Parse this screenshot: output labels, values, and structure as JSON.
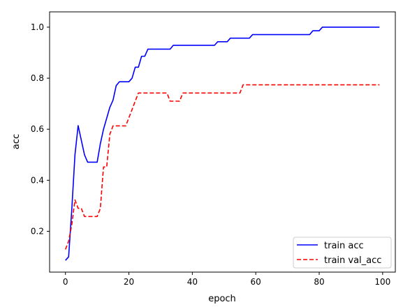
{
  "chart_data": {
    "type": "line",
    "title": "",
    "xlabel": "epoch",
    "ylabel": "acc",
    "xlim": [
      -5,
      104
    ],
    "ylim": [
      0.04,
      1.06
    ],
    "xticks": [
      0,
      20,
      40,
      60,
      80,
      100
    ],
    "yticks": [
      0.2,
      0.4,
      0.6,
      0.8,
      1.0
    ],
    "xtick_labels": [
      "0",
      "20",
      "40",
      "60",
      "80",
      "100"
    ],
    "ytick_labels": [
      "0.2",
      "0.4",
      "0.6",
      "0.8",
      "1.0"
    ],
    "grid": false,
    "legend_position": "lower-right",
    "series": [
      {
        "name": "train acc",
        "color": "#0000ff",
        "style": "solid",
        "x": [
          0,
          1,
          2,
          3,
          4,
          5,
          6,
          7,
          8,
          9,
          10,
          11,
          12,
          13,
          14,
          15,
          16,
          17,
          18,
          19,
          20,
          21,
          22,
          23,
          24,
          25,
          26,
          27,
          28,
          29,
          30,
          31,
          32,
          33,
          34,
          35,
          36,
          37,
          38,
          39,
          40,
          41,
          42,
          43,
          44,
          45,
          46,
          47,
          48,
          49,
          50,
          51,
          52,
          53,
          54,
          55,
          56,
          57,
          58,
          59,
          60,
          61,
          62,
          63,
          64,
          65,
          66,
          67,
          68,
          69,
          70,
          71,
          72,
          73,
          74,
          75,
          76,
          77,
          78,
          79,
          80,
          81,
          82,
          83,
          84,
          85,
          86,
          87,
          88,
          89,
          90,
          91,
          92,
          93,
          94,
          95,
          96,
          97,
          98,
          99
        ],
        "values": [
          0.086,
          0.1,
          0.286,
          0.5,
          0.614,
          0.557,
          0.5,
          0.471,
          0.471,
          0.471,
          0.471,
          0.543,
          0.6,
          0.643,
          0.686,
          0.714,
          0.771,
          0.786,
          0.786,
          0.786,
          0.786,
          0.8,
          0.843,
          0.843,
          0.886,
          0.886,
          0.914,
          0.914,
          0.914,
          0.914,
          0.914,
          0.914,
          0.914,
          0.914,
          0.929,
          0.929,
          0.929,
          0.929,
          0.929,
          0.929,
          0.929,
          0.929,
          0.929,
          0.929,
          0.929,
          0.929,
          0.929,
          0.929,
          0.943,
          0.943,
          0.943,
          0.943,
          0.957,
          0.957,
          0.957,
          0.957,
          0.957,
          0.957,
          0.957,
          0.971,
          0.971,
          0.971,
          0.971,
          0.971,
          0.971,
          0.971,
          0.971,
          0.971,
          0.971,
          0.971,
          0.971,
          0.971,
          0.971,
          0.971,
          0.971,
          0.971,
          0.971,
          0.971,
          0.986,
          0.986,
          0.986,
          1.0,
          1.0,
          1.0,
          1.0,
          1.0,
          1.0,
          1.0,
          1.0,
          1.0,
          1.0,
          1.0,
          1.0,
          1.0,
          1.0,
          1.0,
          1.0,
          1.0,
          1.0,
          1.0
        ]
      },
      {
        "name": "train val_acc",
        "color": "#ff0000",
        "style": "dashed",
        "x": [
          0,
          1,
          2,
          3,
          4,
          5,
          6,
          7,
          8,
          9,
          10,
          11,
          12,
          13,
          14,
          15,
          16,
          17,
          18,
          19,
          20,
          21,
          22,
          23,
          24,
          25,
          26,
          27,
          28,
          29,
          30,
          31,
          32,
          33,
          34,
          35,
          36,
          37,
          38,
          39,
          40,
          41,
          42,
          43,
          44,
          45,
          46,
          47,
          48,
          49,
          50,
          51,
          52,
          53,
          54,
          55,
          56,
          57,
          58,
          59,
          60,
          61,
          62,
          63,
          64,
          65,
          66,
          67,
          68,
          69,
          70,
          71,
          72,
          73,
          74,
          75,
          76,
          77,
          78,
          79,
          80,
          81,
          82,
          83,
          84,
          85,
          86,
          87,
          88,
          89,
          90,
          91,
          92,
          93,
          94,
          95,
          96,
          97,
          98,
          99
        ],
        "values": [
          0.129,
          0.161,
          0.226,
          0.323,
          0.29,
          0.29,
          0.258,
          0.258,
          0.258,
          0.258,
          0.258,
          0.29,
          0.452,
          0.452,
          0.581,
          0.613,
          0.613,
          0.613,
          0.613,
          0.613,
          0.645,
          0.677,
          0.71,
          0.742,
          0.742,
          0.742,
          0.742,
          0.742,
          0.742,
          0.742,
          0.742,
          0.742,
          0.742,
          0.71,
          0.71,
          0.71,
          0.71,
          0.742,
          0.742,
          0.742,
          0.742,
          0.742,
          0.742,
          0.742,
          0.742,
          0.742,
          0.742,
          0.742,
          0.742,
          0.742,
          0.742,
          0.742,
          0.742,
          0.742,
          0.742,
          0.742,
          0.774,
          0.774,
          0.774,
          0.774,
          0.774,
          0.774,
          0.774,
          0.774,
          0.774,
          0.774,
          0.774,
          0.774,
          0.774,
          0.774,
          0.774,
          0.774,
          0.774,
          0.774,
          0.774,
          0.774,
          0.774,
          0.774,
          0.774,
          0.774,
          0.774,
          0.774,
          0.774,
          0.774,
          0.774,
          0.774,
          0.774,
          0.774,
          0.774,
          0.774,
          0.774,
          0.774,
          0.774,
          0.774,
          0.774,
          0.774,
          0.774,
          0.774,
          0.774,
          0.774
        ]
      }
    ]
  }
}
